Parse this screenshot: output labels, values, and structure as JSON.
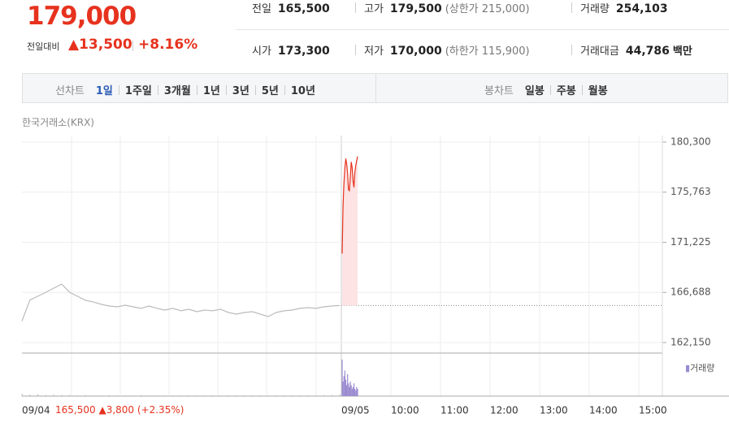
{
  "quote": {
    "price": "179,000",
    "change_label": "전일대비",
    "change": "13,500",
    "change_rate": "+8.16%"
  },
  "stats": [
    {
      "label": "전일",
      "value": "165,500"
    },
    {
      "label": "고가",
      "value": "179,500",
      "note": "(상한가 215,000)"
    },
    {
      "label": "거래량",
      "value": "254,103"
    },
    {
      "label": "시가",
      "value": "173,300"
    },
    {
      "label": "저가",
      "value": "170,000",
      "note": "(하한가 115,900)"
    },
    {
      "label": "거래대금",
      "value": "44,786",
      "unit": "백만"
    }
  ],
  "tabs": {
    "line_label": "선차트",
    "line_periods": [
      "1일",
      "1주일",
      "3개월",
      "1년",
      "3년",
      "5년",
      "10년"
    ],
    "candle_label": "봉차트",
    "candle_periods": [
      "일봉",
      "주봉",
      "월봉"
    ]
  },
  "chart": {
    "type": "line",
    "source": "한국거래소(KRX)",
    "ylim": [
      162150,
      180300
    ],
    "yticks": [
      {
        "value": 180300,
        "label": "180,300"
      },
      {
        "value": 175763,
        "label": "175,763"
      },
      {
        "value": 171225,
        "label": "171,225"
      },
      {
        "value": 166688,
        "label": "166,688"
      },
      {
        "value": 162150,
        "label": "162,150"
      }
    ],
    "reference": 165500,
    "series": [
      {
        "color": "#bbbbbb",
        "values": [
          164100,
          166000,
          166340,
          166700,
          167070,
          167440,
          166700,
          166340,
          165970,
          165820,
          165600,
          165460,
          165380,
          165530,
          165380,
          165240,
          165460,
          165240,
          165090,
          165240,
          165020,
          165160,
          164940,
          165090,
          165020,
          165160,
          164870,
          164720,
          164870,
          164940,
          164720,
          164500,
          164870,
          165020,
          165090,
          165240,
          165310,
          165240,
          165380,
          165460,
          165500
        ]
      },
      {
        "color": "#e6321e",
        "fill": "#fde3e3",
        "values": [
          170200,
          174500,
          176600,
          178000,
          178800,
          178300,
          177400,
          176000,
          175900,
          177200,
          178500,
          178000,
          176800,
          176200,
          177500,
          178200,
          178600,
          179000
        ]
      }
    ],
    "volume": {
      "name": "거래량",
      "ylim": [
        0,
        100
      ],
      "colors": [
        "#bbbbbb",
        "#9b8bd0"
      ],
      "series": [
        [
          6,
          4,
          5,
          3,
          4,
          3,
          3,
          2,
          3,
          2,
          2,
          3,
          2,
          2,
          2,
          3,
          2,
          2,
          2,
          2,
          2,
          2,
          2,
          2,
          2,
          2,
          2,
          2,
          2,
          2,
          2,
          2,
          2,
          2,
          2,
          2,
          2,
          2,
          3,
          3,
          4
        ],
        [
          100,
          40,
          55,
          70,
          45,
          30,
          60,
          35,
          25,
          40,
          30,
          20,
          25,
          35,
          20,
          15,
          25,
          20
        ]
      ]
    },
    "x_labels": [
      "09/04",
      "09/05",
      "10:00",
      "11:00",
      "12:00",
      "13:00",
      "14:00",
      "15:00"
    ],
    "prev_day": {
      "close": "165,500",
      "change": "3,800",
      "rate": "(+2.35%)"
    }
  }
}
